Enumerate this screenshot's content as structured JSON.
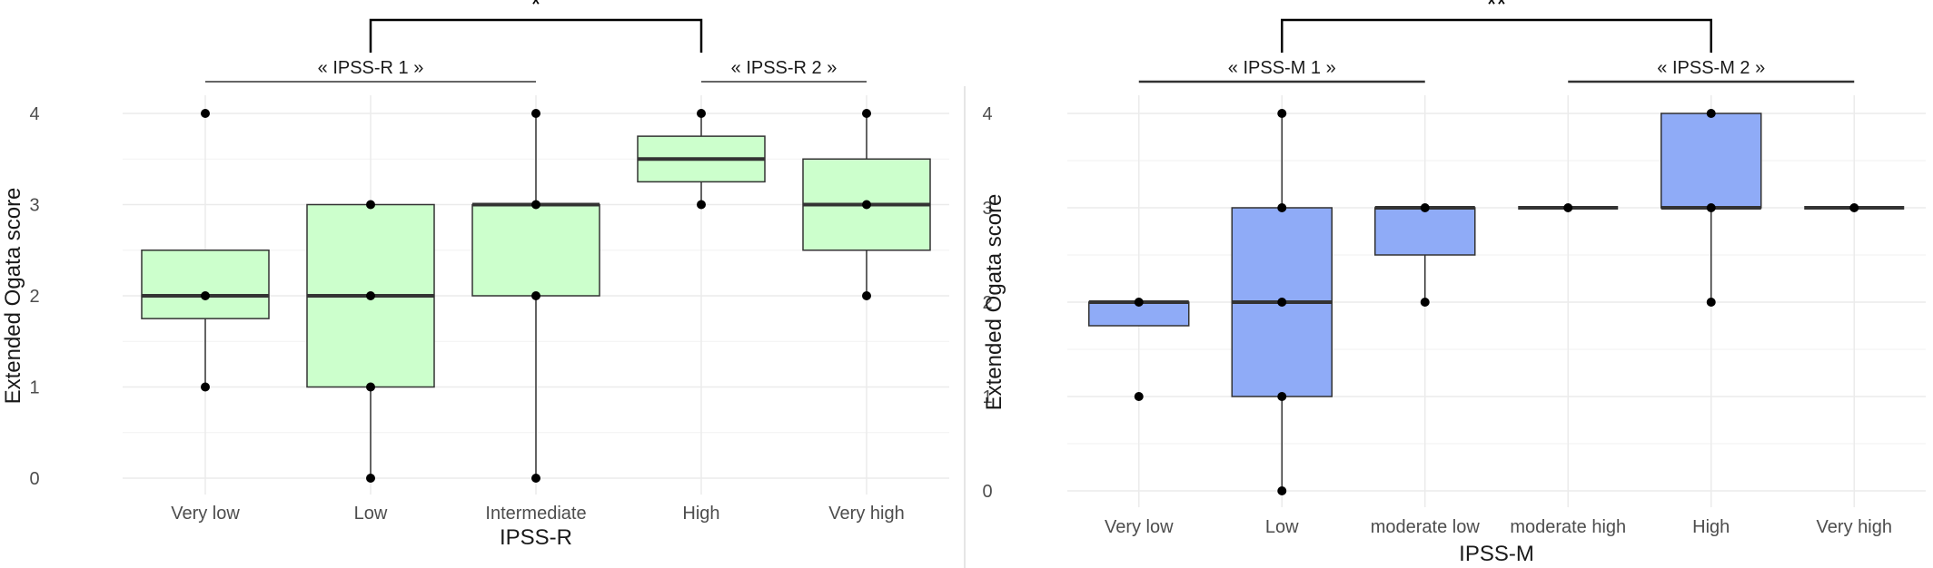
{
  "chart_data": [
    {
      "type": "box",
      "xlabel": "IPSS-R",
      "ylabel": "Extended Ogata score",
      "ylim": [
        0,
        4
      ],
      "yticks": [
        0,
        1,
        2,
        3,
        4
      ],
      "grid": true,
      "box_color": "#ccffcc",
      "categories": [
        "Very low",
        "Low",
        "Intermediate",
        "High",
        "Very high"
      ],
      "boxes": [
        {
          "category": "Very low",
          "q1": 1.75,
          "median": 2,
          "q3": 2.5,
          "whisker_low": 1,
          "whisker_high": 2.5,
          "points": [
            4,
            2,
            1
          ]
        },
        {
          "category": "Low",
          "q1": 1,
          "median": 2,
          "q3": 3,
          "whisker_low": 0,
          "whisker_high": 3,
          "points": [
            3,
            2,
            1,
            0
          ]
        },
        {
          "category": "Intermediate",
          "q1": 2,
          "median": 3,
          "q3": 3,
          "whisker_low": 0,
          "whisker_high": 4,
          "points": [
            4,
            3,
            2,
            0
          ]
        },
        {
          "category": "High",
          "q1": 3.25,
          "median": 3.5,
          "q3": 3.75,
          "whisker_low": 3,
          "whisker_high": 4,
          "points": [
            4,
            3
          ]
        },
        {
          "category": "Very high",
          "q1": 2.5,
          "median": 3,
          "q3": 3.5,
          "whisker_low": 2,
          "whisker_high": 4,
          "points": [
            4,
            3,
            2
          ]
        }
      ],
      "group_labels": [
        {
          "label": "« IPSS-R 1 »",
          "from": "Very low",
          "to": "Intermediate"
        },
        {
          "label": "« IPSS-R 2 »",
          "from": "High",
          "to": "Very high"
        }
      ],
      "significance": {
        "label": "*",
        "between": [
          "Low",
          "High"
        ]
      }
    },
    {
      "type": "box",
      "xlabel": "IPSS-M",
      "ylabel": "Extended Ogata score",
      "ylim": [
        0,
        4
      ],
      "yticks": [
        0,
        1,
        2,
        3,
        4
      ],
      "grid": true,
      "box_color": "#8fabf7",
      "categories": [
        "Very low",
        "Low",
        "moderate low",
        "moderate high",
        "High",
        "Very high"
      ],
      "boxes": [
        {
          "category": "Very low",
          "q1": 1.75,
          "median": 2,
          "q3": 2,
          "whisker_low": 1.75,
          "whisker_high": 2,
          "points": [
            2,
            1
          ]
        },
        {
          "category": "Low",
          "q1": 1,
          "median": 2,
          "q3": 3,
          "whisker_low": 0,
          "whisker_high": 4,
          "points": [
            4,
            3,
            2,
            1,
            0
          ]
        },
        {
          "category": "moderate low",
          "q1": 2.5,
          "median": 3,
          "q3": 3,
          "whisker_low": 2,
          "whisker_high": 3,
          "points": [
            3,
            2
          ]
        },
        {
          "category": "moderate high",
          "q1": 3,
          "median": 3,
          "q3": 3,
          "whisker_low": 3,
          "whisker_high": 3,
          "points": [
            3
          ]
        },
        {
          "category": "High",
          "q1": 3,
          "median": 3,
          "q3": 4,
          "whisker_low": 2,
          "whisker_high": 4,
          "points": [
            4,
            3,
            2
          ]
        },
        {
          "category": "Very high",
          "q1": 3,
          "median": 3,
          "q3": 3,
          "whisker_low": 3,
          "whisker_high": 3,
          "points": [
            3
          ]
        }
      ],
      "group_labels": [
        {
          "label": "« IPSS-M 1 »",
          "from": "Very low",
          "to": "moderate low"
        },
        {
          "label": "« IPSS-M 2 »",
          "from": "moderate high",
          "to": "Very high"
        }
      ],
      "significance": {
        "label": "**",
        "between": [
          "Low",
          "High"
        ]
      }
    }
  ]
}
